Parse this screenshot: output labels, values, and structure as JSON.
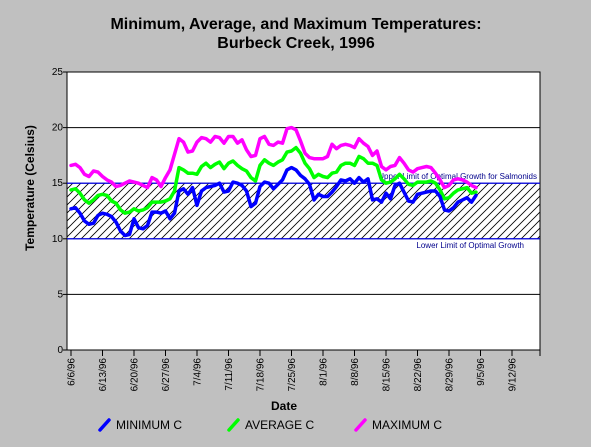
{
  "chart_data": {
    "type": "line",
    "title": [
      "Minimum, Average, and Maximum Temperatures:",
      "Burbeck Creek, 1996"
    ],
    "xlabel": "Date",
    "ylabel": "Temperature (Celsius)",
    "ylim": [
      0,
      25
    ],
    "yticks": [
      0,
      5,
      10,
      15,
      20,
      25
    ],
    "x_tick_labels": [
      "6/6/96",
      "6/13/96",
      "6/20/96",
      "6/27/96",
      "7/4/96",
      "7/11/96",
      "7/18/96",
      "7/25/96",
      "8/1/96",
      "8/8/96",
      "8/15/96",
      "8/22/96",
      "8/29/96",
      "9/5/96",
      "9/12/96"
    ],
    "grid": "horizontal",
    "legend_position": "bottom",
    "bands": [
      {
        "upper": 15,
        "lower": 10,
        "upper_label": "Upper Limit of Optimal Growth for Salmonids",
        "lower_label": "Lower Limit of Optimal Growth"
      }
    ],
    "series": [
      {
        "name": "MINIMUM C",
        "color": "#0000ff",
        "values": [
          12.7,
          12.8,
          12.3,
          11.6,
          11.3,
          11.4,
          12.1,
          12.3,
          12.2,
          12.0,
          11.5,
          10.7,
          10.3,
          10.4,
          11.8,
          11.0,
          10.9,
          11.2,
          12.4,
          12.4,
          12.3,
          12.5,
          11.8,
          12.3,
          14.3,
          14.5,
          14.0,
          14.6,
          13.0,
          14.3,
          14.6,
          14.7,
          14.8,
          15.0,
          14.2,
          14.3,
          15.1,
          15.0,
          14.8,
          14.3,
          12.9,
          13.2,
          14.7,
          15.1,
          15.0,
          14.5,
          14.9,
          15.3,
          16.2,
          16.4,
          16.2,
          15.7,
          15.4,
          14.9,
          13.5,
          14.0,
          13.8,
          13.8,
          14.2,
          14.7,
          15.3,
          15.2,
          15.4,
          15.0,
          15.5,
          15.1,
          15.4,
          13.5,
          13.6,
          13.3,
          14.1,
          13.6,
          14.8,
          15.0,
          14.2,
          13.4,
          13.3,
          14.0,
          14.1,
          14.2,
          14.3,
          14.3,
          13.8,
          12.6,
          12.5,
          12.8,
          13.3,
          13.5,
          13.7,
          13.3,
          13.9
        ]
      },
      {
        "name": "AVERAGE C",
        "color": "#00ff00",
        "values": [
          14.4,
          14.5,
          14.1,
          13.5,
          13.2,
          13.5,
          13.9,
          14.0,
          13.9,
          13.4,
          13.2,
          12.6,
          12.3,
          12.4,
          12.7,
          12.5,
          12.6,
          12.8,
          13.3,
          13.3,
          13.3,
          13.4,
          13.6,
          14.3,
          16.4,
          16.2,
          15.9,
          15.9,
          15.8,
          16.5,
          16.8,
          16.4,
          16.7,
          16.9,
          16.3,
          16.8,
          17.0,
          16.6,
          16.3,
          16.1,
          15.5,
          15.2,
          16.6,
          17.1,
          16.8,
          16.6,
          16.9,
          17.1,
          17.8,
          17.9,
          18.2,
          17.7,
          16.8,
          16.3,
          15.5,
          15.8,
          15.6,
          15.5,
          15.9,
          16.0,
          16.6,
          16.8,
          16.8,
          16.6,
          17.4,
          17.2,
          16.8,
          16.8,
          16.6,
          15.3,
          15.0,
          15.1,
          15.4,
          15.8,
          15.4,
          14.9,
          14.8,
          15.1,
          15.1,
          15.1,
          15.2,
          15.0,
          14.4,
          13.6,
          13.7,
          14.1,
          14.4,
          14.5,
          14.6,
          14.1,
          14.2
        ]
      },
      {
        "name": "MAXIMUM C",
        "color": "#ff00ff",
        "values": [
          16.6,
          16.7,
          16.4,
          15.8,
          15.6,
          16.1,
          16.0,
          15.6,
          15.3,
          15.1,
          14.7,
          14.8,
          15.0,
          15.2,
          15.1,
          15.0,
          14.8,
          14.6,
          15.5,
          15.3,
          14.7,
          15.5,
          16.2,
          17.6,
          19.0,
          18.7,
          17.8,
          17.9,
          18.7,
          19.1,
          19.0,
          18.7,
          19.2,
          19.1,
          18.6,
          19.2,
          19.2,
          18.6,
          18.9,
          18.0,
          17.4,
          17.5,
          19.0,
          19.2,
          18.5,
          18.4,
          18.7,
          18.6,
          19.9,
          20.0,
          19.8,
          18.8,
          17.7,
          17.3,
          17.2,
          17.2,
          17.2,
          17.4,
          18.5,
          18.1,
          18.4,
          18.5,
          18.4,
          18.2,
          19.0,
          18.6,
          18.3,
          17.5,
          17.9,
          16.5,
          16.2,
          16.5,
          16.6,
          17.3,
          16.8,
          16.2,
          16.0,
          16.3,
          16.4,
          16.5,
          16.4,
          15.9,
          15.3,
          14.6,
          14.8,
          15.3,
          15.4,
          15.3,
          15.1,
          14.8,
          14.6
        ]
      }
    ]
  }
}
